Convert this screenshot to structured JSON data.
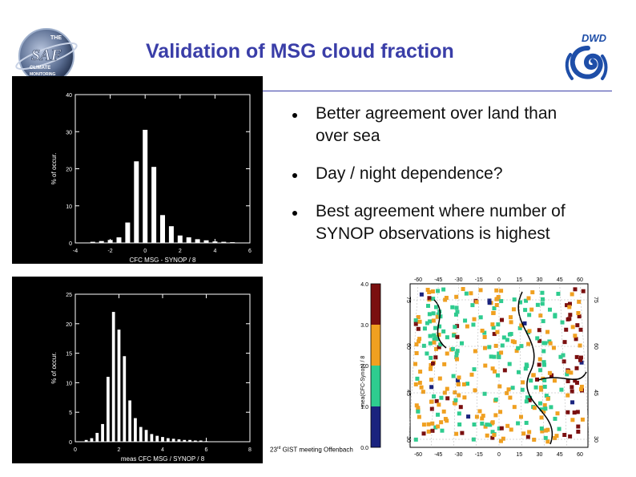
{
  "slide": {
    "title": "Validation of MSG cloud fraction",
    "bullets": [
      "Better agreement over land than over sea",
      "Day / night dependence?",
      "Best agreement where number of SYNOP observations is highest"
    ],
    "footer_prefix": "23",
    "footer_sup": "rd",
    "footer_suffix": " GIST meeting Offenbach"
  },
  "logos": {
    "left_logo_lines": [
      "THE",
      "SAF",
      "CLIMATE",
      "MONITORING"
    ],
    "right_logo_text": "DWD"
  },
  "colors": {
    "title": "#3a3ea8",
    "plot_bg": "#000000",
    "bars": "#ffffff",
    "map_bins": [
      "#1a237e",
      "#2ecc8f",
      "#f0a020",
      "#7a0f0f"
    ]
  },
  "chart_data": [
    {
      "type": "bar",
      "xlabel": "CFC MSG - SYNOP / 8",
      "ylabel": "% of occur.",
      "xlim": [
        -4,
        6
      ],
      "ylim": [
        0,
        40
      ],
      "x_ticks": [
        "-4",
        "-2",
        "0",
        "2",
        "4",
        "6"
      ],
      "y_ticks": [
        "0",
        "10",
        "20",
        "30",
        "40"
      ],
      "x": [
        -3,
        -2.5,
        -2,
        -1.5,
        -1,
        -0.5,
        0,
        0.5,
        1,
        1.5,
        2,
        2.5,
        3,
        3.5,
        4,
        4.5,
        5
      ],
      "values": [
        0.3,
        0.5,
        0.8,
        1.5,
        5.5,
        22,
        30.5,
        20.5,
        7.5,
        4.5,
        2,
        1.5,
        1,
        0.7,
        0.4,
        0.3,
        0.2
      ]
    },
    {
      "type": "bar",
      "xlabel": "meas CFC MSG / SYNOP / 8",
      "ylabel": "% of occur.",
      "xlim": [
        0,
        8
      ],
      "ylim": [
        0,
        25
      ],
      "x_ticks": [
        "0",
        "2",
        "4",
        "6",
        "8"
      ],
      "y_ticks": [
        "0",
        "5",
        "10",
        "15",
        "20",
        "25"
      ],
      "x": [
        0.5,
        0.75,
        1,
        1.25,
        1.5,
        1.75,
        2,
        2.25,
        2.5,
        2.75,
        3,
        3.25,
        3.5,
        3.75,
        4,
        4.25,
        4.5,
        4.75,
        5,
        5.25,
        5.5,
        5.75,
        6
      ],
      "values": [
        0.3,
        0.6,
        1.5,
        3,
        11,
        22,
        19,
        14.5,
        7,
        4,
        2.5,
        2,
        1.3,
        1,
        0.8,
        0.6,
        0.5,
        0.4,
        0.3,
        0.3,
        0.2,
        0.2,
        0.1
      ]
    },
    {
      "type": "heatmap",
      "colorbar_label": "mea(CFC-Synop) / 8",
      "colorbar_ticks": [
        "0.0",
        "1.0",
        "2.0",
        "3.0",
        "4.0"
      ],
      "lon_ticks_top": [
        "-60",
        "-45",
        "-30",
        "-15",
        "0",
        "15",
        "30",
        "45",
        "60"
      ],
      "lon_ticks_bottom": [
        "-60",
        "-45",
        "-30",
        "-15",
        "0",
        "15",
        "30",
        "45",
        "60"
      ],
      "lat_ticks": [
        "75",
        "60",
        "45",
        "30"
      ]
    }
  ]
}
